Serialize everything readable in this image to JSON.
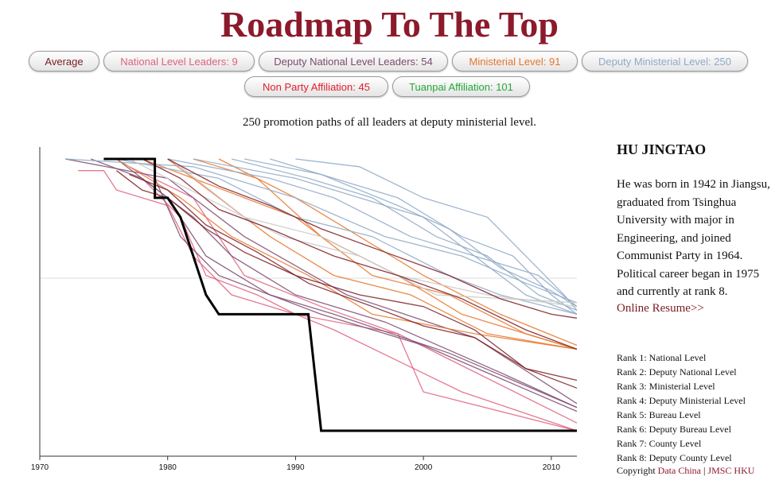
{
  "title": "Roadmap To The Top",
  "buttons": [
    {
      "label": "Average",
      "color": "#7a1c22"
    },
    {
      "label": "National Level Leaders: 9",
      "color": "#e0607e"
    },
    {
      "label": "Deputy National Level Leaders: 54",
      "color": "#7d4a6e"
    },
    {
      "label": "Ministerial Level: 91",
      "color": "#e8762c"
    },
    {
      "label": "Deputy Ministerial Level: 250",
      "color": "#8fa9c7"
    },
    {
      "label": "Non Party Affiliation: 45",
      "color": "#e02030"
    },
    {
      "label": "Tuanpai Affiliation: 101",
      "color": "#22a838"
    }
  ],
  "subtitle": "250 promotion paths of all leaders at deputy ministerial level.",
  "leader": {
    "name": "HU JINGTAO",
    "bio": "He was born in 1942 in Jiangsu, graduated from Tsinghua University with major in Engineering, and joined Communist Party in 1964. Political career began in 1975 and currently at rank 8.",
    "resume_link": "Online Resume>>"
  },
  "ranks": [
    "Rank 1: National Level",
    "Rank 2: Deputy National Level",
    "Rank 3: Ministerial Level",
    "Rank 4: Deputy Ministerial Level",
    "Rank 5: Bureau Level",
    "Rank 6: Deputy Bureau Level",
    "Rank 7: County Level",
    "Rank 8: Deputy County Level"
  ],
  "copyright": {
    "prefix": "Copyright ",
    "link1": "Data China",
    "separator": " | ",
    "link2": "JMSC HKU"
  },
  "chart_data": {
    "type": "line",
    "x_ticks": [
      "1970",
      "1980",
      "1990",
      "2000",
      "2010"
    ],
    "xlim": [
      1970,
      2012
    ],
    "ylim": [
      8,
      1
    ],
    "series": [
      {
        "highlight": true,
        "color": "#000000",
        "x": [
          1975,
          1979,
          1979,
          1980,
          1981,
          1983,
          1984,
          1991,
          1992,
          2012
        ],
        "y": [
          8,
          8,
          7,
          7,
          6.5,
          4.5,
          4,
          4,
          1,
          1
        ]
      },
      {
        "color": "#e0607e",
        "x": [
          1973,
          1975,
          1976,
          1980,
          1982,
          1985,
          1990,
          1998,
          2000,
          2012
        ],
        "y": [
          7.7,
          7.7,
          7.2,
          6.8,
          5.5,
          4.5,
          4,
          3.5,
          2,
          1
        ]
      },
      {
        "color": "#e0607e",
        "x": [
          1978,
          1981,
          1983,
          1987,
          1990,
          1993,
          2003,
          2012
        ],
        "y": [
          7.5,
          6.5,
          5,
          4.5,
          4,
          3.6,
          2,
          1
        ]
      },
      {
        "color": "#e0607e",
        "x": [
          1977,
          1982,
          1986,
          1992,
          1998,
          2012
        ],
        "y": [
          7.8,
          7,
          5,
          4.2,
          3.5,
          1.2
        ]
      },
      {
        "color": "#7d4a6e",
        "x": [
          1976,
          1980,
          1983,
          1988,
          1993,
          2002,
          2012
        ],
        "y": [
          8,
          7,
          5.5,
          4.5,
          4,
          3,
          1.6
        ]
      },
      {
        "color": "#7d4a6e",
        "x": [
          1974,
          1978,
          1982,
          1985,
          1990,
          1997,
          2006,
          2012
        ],
        "y": [
          8,
          7.5,
          6.5,
          5.5,
          4.5,
          3.8,
          2.5,
          1.6
        ]
      },
      {
        "color": "#7d4a6e",
        "x": [
          1979,
          1981,
          1984,
          1992,
          2000,
          2012
        ],
        "y": [
          7.5,
          6,
          5,
          4,
          3.2,
          1.5
        ]
      },
      {
        "color": "#7d4a6e",
        "x": [
          1972,
          1980,
          1986,
          1994,
          2004,
          2012
        ],
        "y": [
          8,
          7.5,
          6,
          4.5,
          3.4,
          1.7
        ]
      },
      {
        "color": "#e8762c",
        "x": [
          1976,
          1981,
          1985,
          1991,
          1996,
          2004,
          2012
        ],
        "y": [
          8,
          7,
          6,
          5,
          4,
          3.5,
          3.1
        ]
      },
      {
        "color": "#e8762c",
        "x": [
          1980,
          1984,
          1988,
          1993,
          1999,
          2005,
          2012
        ],
        "y": [
          8,
          7,
          6,
          5,
          4.5,
          3.5,
          3.1
        ]
      },
      {
        "color": "#e8762c",
        "x": [
          1978,
          1986,
          1990,
          1996,
          2002,
          2008,
          2012
        ],
        "y": [
          8,
          7,
          6.5,
          5,
          4.5,
          3.5,
          3.1
        ]
      },
      {
        "color": "#e8762c",
        "x": [
          1982,
          1987,
          1992,
          1998,
          2003,
          2012
        ],
        "y": [
          8,
          7.5,
          6,
          5,
          4,
          3.1
        ]
      },
      {
        "color": "#e8762c",
        "x": [
          1984,
          1990,
          1995,
          2000,
          2006,
          2012
        ],
        "y": [
          8,
          7,
          6,
          5,
          4,
          3.2
        ]
      },
      {
        "color": "#8fa9c7",
        "x": [
          1976,
          1984,
          1990,
          1996,
          2002,
          2006,
          2012
        ],
        "y": [
          8,
          7.5,
          6.5,
          6,
          5,
          4.5,
          4
        ]
      },
      {
        "color": "#8fa9c7",
        "x": [
          1980,
          1988,
          1993,
          1999,
          2004,
          2008,
          2012
        ],
        "y": [
          8,
          7.5,
          7,
          6,
          5.5,
          4.5,
          4
        ]
      },
      {
        "color": "#8fa9c7",
        "x": [
          1985,
          1991,
          1996,
          2001,
          2005,
          2009,
          2012
        ],
        "y": [
          8,
          7.5,
          7,
          6,
          5.5,
          4.5,
          4.1
        ]
      },
      {
        "color": "#8fa9c7",
        "x": [
          1988,
          1993,
          1998,
          2003,
          2007,
          2010,
          2012
        ],
        "y": [
          8,
          7.5,
          7,
          6,
          5.5,
          4.5,
          4
        ]
      },
      {
        "color": "#8fa9c7",
        "x": [
          1982,
          1990,
          1995,
          2000,
          2004,
          2009,
          2012
        ],
        "y": [
          8,
          7.5,
          7,
          6.5,
          5.5,
          5,
          4.2
        ]
      },
      {
        "color": "#8fa9c7",
        "x": [
          1990,
          1995,
          2000,
          2005,
          2008,
          2011,
          2012
        ],
        "y": [
          8,
          7.8,
          7,
          6.5,
          5.5,
          4.5,
          4.1
        ]
      },
      {
        "color": "#8fa9c7",
        "x": [
          1972,
          1982,
          1990,
          1997,
          2003,
          2008,
          2012
        ],
        "y": [
          8,
          7.8,
          7,
          6,
          5.5,
          4.8,
          4.3
        ]
      },
      {
        "color": "#8fa9c7",
        "x": [
          1986,
          1992,
          1998,
          2002,
          2006,
          2010,
          2012
        ],
        "y": [
          8,
          7.6,
          6.8,
          6.2,
          5.2,
          4.6,
          4.2
        ]
      },
      {
        "color": "#c8c8c8",
        "x": [
          1977,
          1983,
          1989,
          1995,
          2001,
          2012
        ],
        "y": [
          8,
          7,
          6,
          5.5,
          4.5,
          4.3
        ]
      },
      {
        "color": "#c8c8c8",
        "x": [
          1981,
          1986,
          1992,
          1998,
          2005,
          2012
        ],
        "y": [
          7.8,
          6.5,
          6,
          5,
          4.5,
          4.2
        ]
      },
      {
        "color": "#7a1c22",
        "x": [
          1976,
          1978,
          1980,
          1983,
          1986,
          1990,
          1995,
          2000,
          2004,
          2008,
          2012
        ],
        "y": [
          7.7,
          7.2,
          7,
          6.2,
          5.6,
          5,
          4.5,
          4.2,
          3.6,
          2.6,
          2.1
        ]
      },
      {
        "color": "#7a1c22",
        "x": [
          1977,
          1980,
          1983,
          1987,
          1991,
          1996,
          2000,
          2004,
          2008,
          2012
        ],
        "y": [
          7.6,
          7.2,
          6.3,
          5.6,
          4.8,
          4.2,
          3.7,
          3.4,
          2.6,
          2.3
        ]
      },
      {
        "color": "#7a1c22",
        "x": [
          1978,
          1981,
          1984,
          1988,
          1993,
          1998,
          2003,
          2008,
          2012
        ],
        "y": [
          8,
          7.5,
          6.7,
          6.2,
          5.5,
          5,
          4.4,
          3.6,
          3.1
        ]
      },
      {
        "color": "#7a1c22",
        "x": [
          1980,
          1984,
          1988,
          1992,
          1997,
          2002,
          2006,
          2010,
          2012
        ],
        "y": [
          8,
          7.3,
          6.8,
          6.2,
          5.6,
          5,
          4.4,
          4,
          3.9
        ]
      }
    ]
  }
}
